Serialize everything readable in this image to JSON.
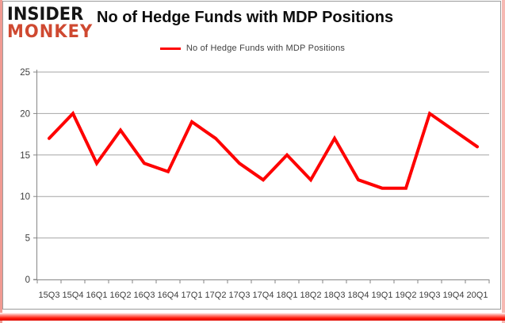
{
  "logo": {
    "line1": "INSIDER",
    "line2": "MONKEY"
  },
  "title": "No of Hedge Funds with MDP Positions",
  "legend": {
    "label": "No of Hedge Funds with MDP Positions",
    "color": "#fe0000"
  },
  "colors": {
    "series_red": "#fe0000",
    "logo_red": "#cf4931",
    "axis_gray": "#868686",
    "grid_gray": "#a6a6a6",
    "tick_text": "#3d3d3d",
    "frame_bottom_red": "#e8251a",
    "frame_side_pink": "#f09a92"
  },
  "chart_data": {
    "type": "line",
    "title": "No of Hedge Funds with MDP Positions",
    "categories": [
      "15Q3",
      "15Q4",
      "16Q1",
      "16Q2",
      "16Q3",
      "16Q4",
      "17Q1",
      "17Q2",
      "17Q3",
      "17Q4",
      "18Q1",
      "18Q2",
      "18Q3",
      "18Q4",
      "19Q1",
      "19Q2",
      "19Q3",
      "19Q4",
      "20Q1"
    ],
    "series": [
      {
        "name": "No of Hedge Funds with MDP Positions",
        "color": "#fe0000",
        "values": [
          17,
          20,
          14,
          18,
          14,
          13,
          19,
          17,
          14,
          12,
          15,
          12,
          17,
          12,
          11,
          11,
          20,
          18,
          16
        ]
      }
    ],
    "xlabel": "",
    "ylabel": "",
    "ylim": [
      0,
      25
    ],
    "yticks": [
      0,
      5,
      10,
      15,
      20,
      25
    ],
    "grid": "horizontal",
    "legend_position": "top"
  }
}
